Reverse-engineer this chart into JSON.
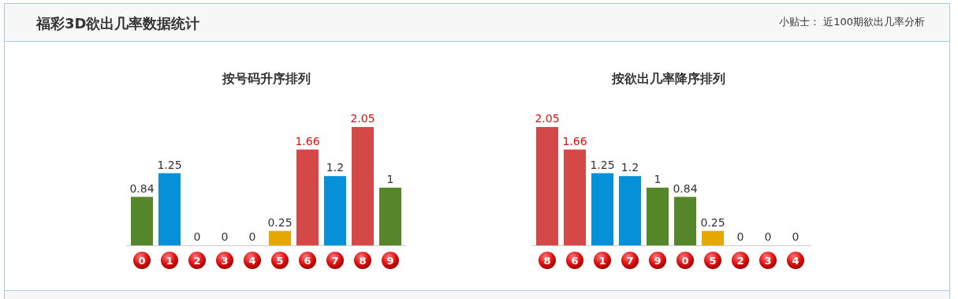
{
  "chart_data": [
    {
      "type": "other",
      "title": "福彩3D欲出几率数据统计",
      "annotations": [
        "小贴士： 近100期欲出几率分析"
      ]
    },
    {
      "type": "bar",
      "title": "按号码升序排列",
      "categories": [
        "0",
        "1",
        "2",
        "3",
        "4",
        "5",
        "6",
        "7",
        "8",
        "9"
      ],
      "values": [
        0.84,
        1.25,
        0,
        0,
        0,
        0.25,
        1.66,
        1.2,
        2.05,
        1
      ],
      "colors": [
        "#56862a",
        "#0590d8",
        "#56862a",
        "#56862a",
        "#56862a",
        "#e5a800",
        "#d44848",
        "#0590d8",
        "#d44848",
        "#56862a"
      ],
      "data_labels": true
    },
    {
      "type": "bar",
      "title": "按欲出几率降序排列",
      "categories": [
        "8",
        "6",
        "1",
        "7",
        "9",
        "0",
        "5",
        "2",
        "3",
        "4"
      ],
      "values": [
        2.05,
        1.66,
        1.25,
        1.2,
        1,
        0.84,
        0.25,
        0,
        0,
        0
      ],
      "colors": [
        "#d44848",
        "#d44848",
        "#0590d8",
        "#0590d8",
        "#56862a",
        "#56862a",
        "#e5a800",
        "#56862a",
        "#56862a",
        "#56862a"
      ],
      "data_labels": true
    }
  ]
}
